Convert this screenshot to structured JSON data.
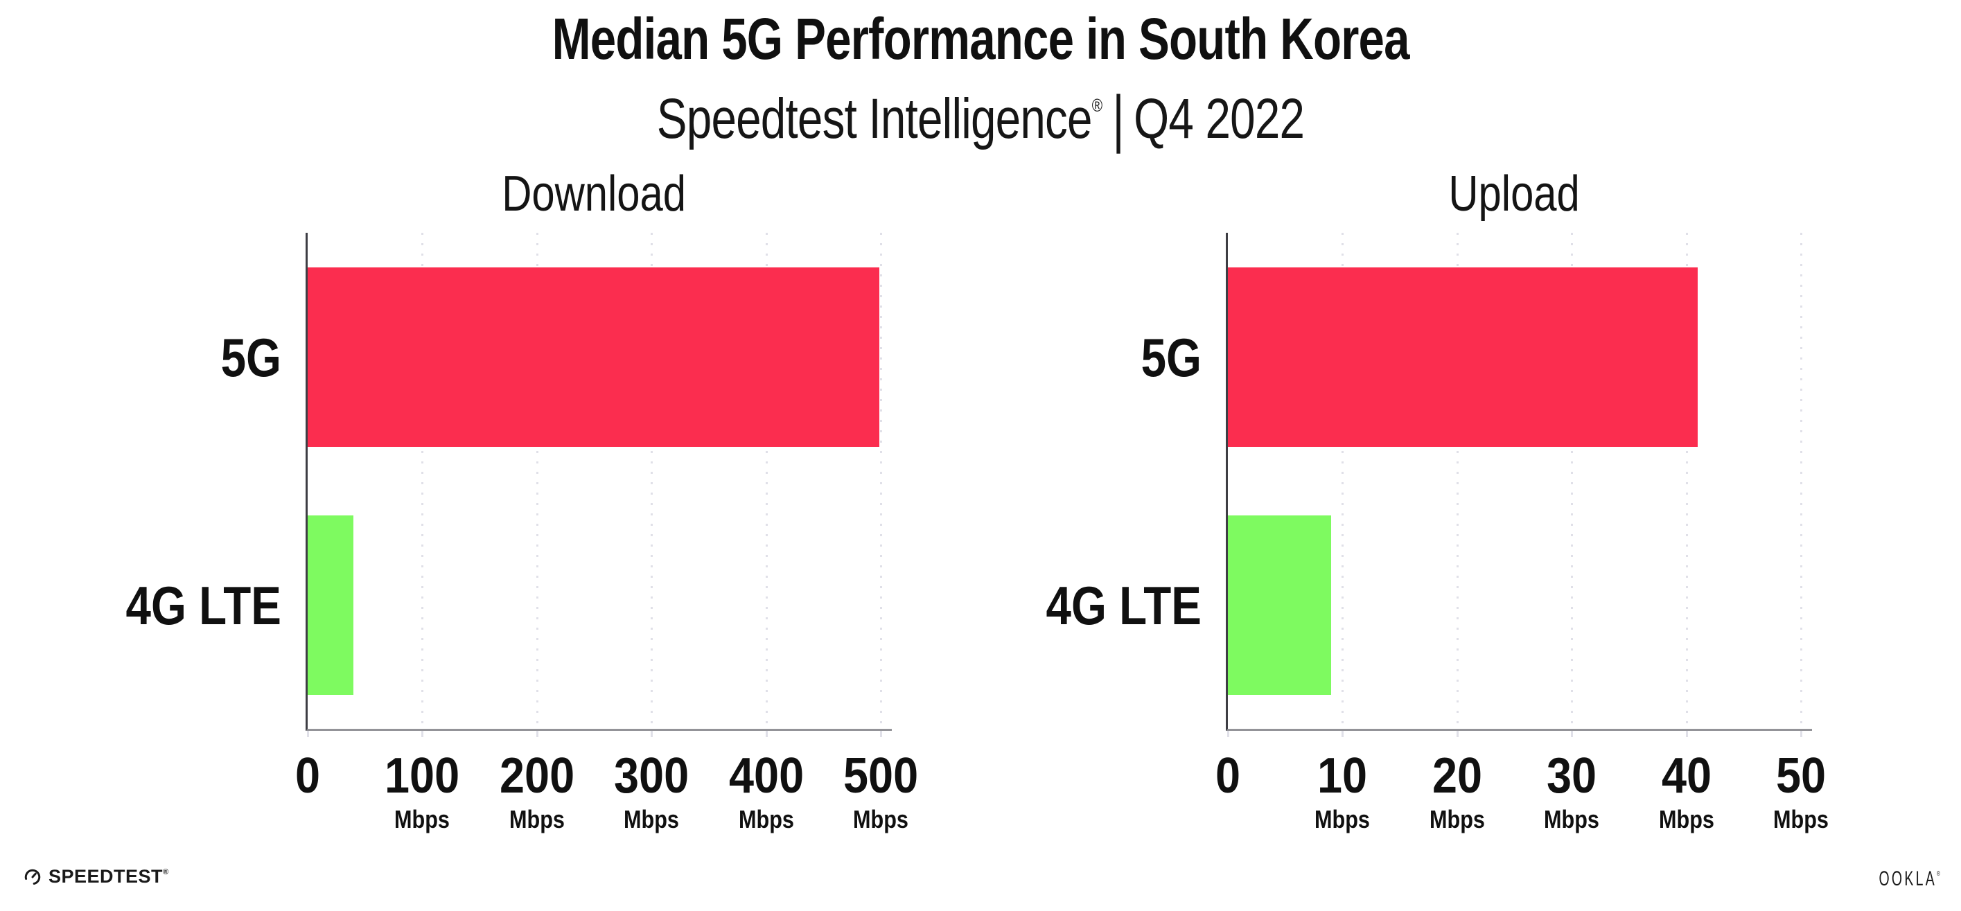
{
  "header": {
    "title": "Median 5G Performance in South Korea",
    "subtitle": {
      "brand": "Speedtest Intelligence",
      "reg_mark": "®",
      "separator": "|",
      "period": "Q4 2022"
    }
  },
  "colors": {
    "bar_5g": "#FB2D4F",
    "bar_4g_lte": "#7EFA60",
    "gridline": "#E0E0E8",
    "x_axis": "#939398",
    "y_axis": "#3E3E44",
    "text": "#101010"
  },
  "chart_data": [
    {
      "type": "bar",
      "orientation": "horizontal",
      "title": "Download",
      "categories": [
        "5G",
        "4G LTE"
      ],
      "values": [
        499,
        40
      ],
      "unit": "Mbps",
      "xlim": [
        0,
        500
      ],
      "xticks": [
        0,
        100,
        200,
        300,
        400,
        500
      ],
      "bar_colors": [
        "#FB2D4F",
        "#7EFA60"
      ],
      "grid": "dotted-vertical",
      "legend": "none"
    },
    {
      "type": "bar",
      "orientation": "horizontal",
      "title": "Upload",
      "categories": [
        "5G",
        "4G LTE"
      ],
      "values": [
        41,
        9
      ],
      "unit": "Mbps",
      "xlim": [
        0,
        50
      ],
      "xticks": [
        0,
        10,
        20,
        30,
        40,
        50
      ],
      "bar_colors": [
        "#FB2D4F",
        "#7EFA60"
      ],
      "grid": "dotted-vertical",
      "legend": "none"
    }
  ],
  "footer": {
    "speedtest": "SPEEDTEST",
    "speedtest_mark": "®",
    "ookla": "OOKLA",
    "ookla_mark": "®"
  }
}
